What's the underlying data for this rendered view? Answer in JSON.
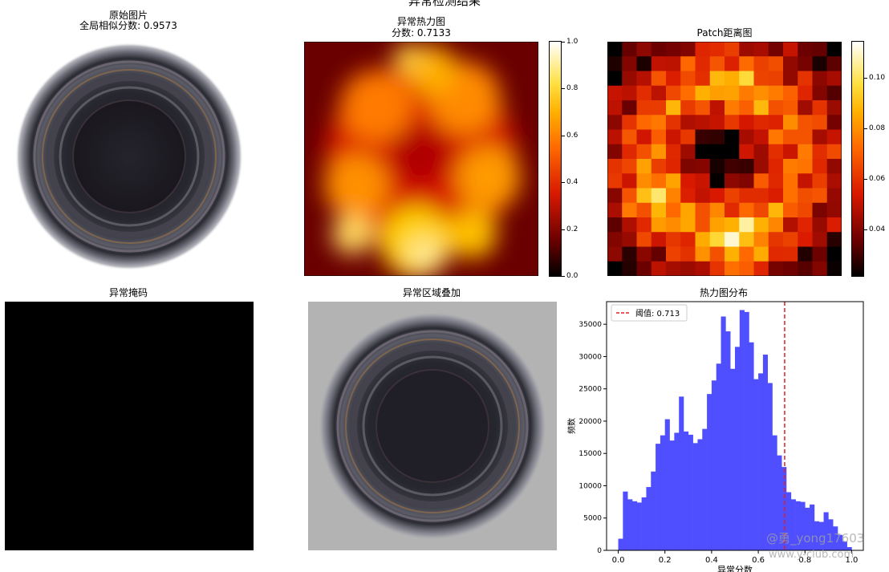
{
  "figure": {
    "suptitle": "异常检测结果"
  },
  "panels": {
    "original": {
      "title": "原始图片",
      "subtitle": "全局相似分数: 0.9573"
    },
    "heatmap": {
      "title": "异常热力图",
      "subtitle": "分数: 0.7133",
      "colorbar_ticks": [
        "1.0",
        "0.8",
        "0.6",
        "0.4",
        "0.2",
        "0.0"
      ],
      "colormap": "hot"
    },
    "patch": {
      "title": "Patch距离图",
      "colorbar_ticks": [
        "0.10",
        "0.08",
        "0.06",
        "0.04"
      ],
      "colormap": "hot"
    },
    "mask": {
      "title": "异常掩码",
      "fill": "#000000"
    },
    "overlay": {
      "title": "异常区域叠加",
      "background": "#b3b3b3"
    },
    "hist": {
      "title": "热力图分布"
    }
  },
  "chart_data": {
    "type": "bar",
    "title": "热力图分布",
    "xlabel": "异常分数",
    "ylabel": "频数",
    "xlim": [
      -0.05,
      1.05
    ],
    "ylim": [
      0,
      38500
    ],
    "xticks": [
      "0.0",
      "0.2",
      "0.4",
      "0.6",
      "0.8",
      "1.0"
    ],
    "yticks": [
      "0",
      "5000",
      "10000",
      "15000",
      "20000",
      "25000",
      "30000",
      "35000"
    ],
    "bin_width": 0.02,
    "bin_starts": [
      0.0,
      0.02,
      0.04,
      0.06,
      0.08,
      0.1,
      0.12,
      0.14,
      0.16,
      0.18,
      0.2,
      0.22,
      0.24,
      0.26,
      0.28,
      0.3,
      0.32,
      0.34,
      0.36,
      0.38,
      0.4,
      0.42,
      0.44,
      0.46,
      0.48,
      0.5,
      0.52,
      0.54,
      0.56,
      0.58,
      0.6,
      0.62,
      0.64,
      0.66,
      0.68,
      0.7,
      0.72,
      0.74,
      0.76,
      0.78,
      0.8,
      0.82,
      0.84,
      0.86,
      0.88,
      0.9,
      0.92,
      0.94,
      0.96,
      0.98
    ],
    "values": [
      1800,
      9100,
      7900,
      7600,
      7400,
      8200,
      9800,
      12200,
      16500,
      17800,
      20300,
      17000,
      18200,
      23800,
      18400,
      17900,
      16600,
      17200,
      18800,
      24200,
      26300,
      28900,
      36200,
      33900,
      28100,
      31500,
      37200,
      36900,
      32200,
      26500,
      27400,
      30300,
      25900,
      17800,
      14700,
      12900,
      9000,
      7900,
      7600,
      7500,
      6600,
      7100,
      4500,
      4400,
      5900,
      4800,
      3700,
      2400,
      1400,
      500
    ],
    "threshold": {
      "value": 0.713,
      "label": "阈值: 0.713",
      "color": "#dd2222",
      "style": "dashed"
    },
    "bar_color": "#4b4bff",
    "legend_position": "top-left"
  },
  "watermark": {
    "line1": "@勇_yong17603",
    "line2": "www.y-club.com"
  }
}
